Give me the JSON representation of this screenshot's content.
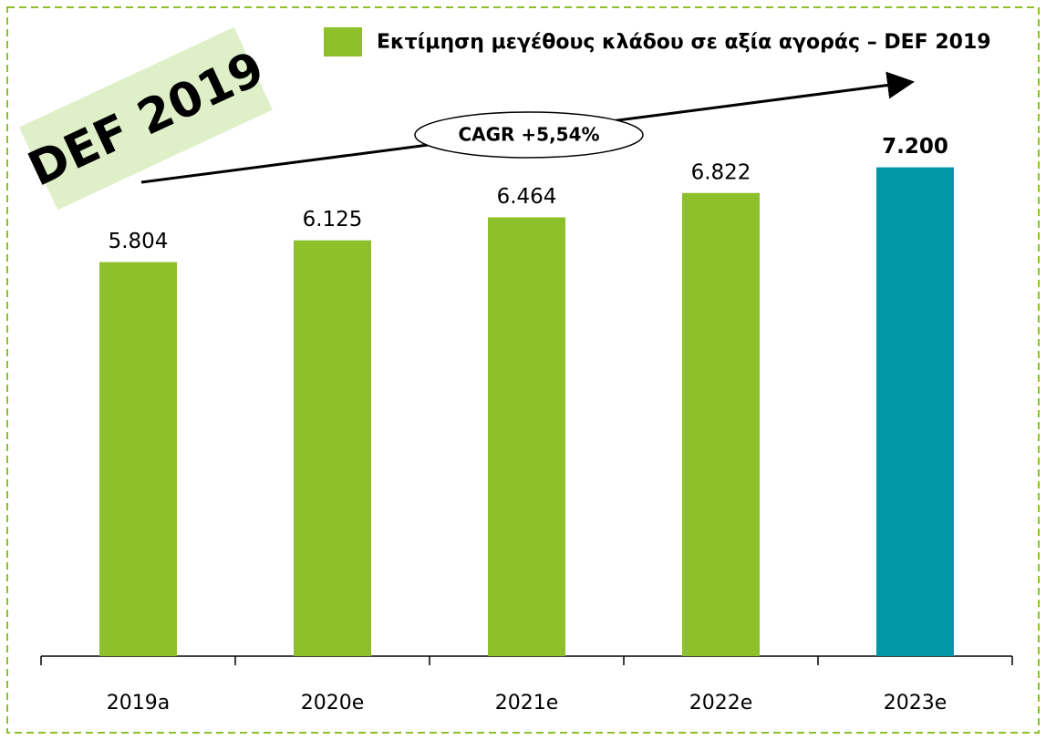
{
  "chart_data": {
    "type": "bar",
    "title": "DEF 2019",
    "legend": "Εκτίμηση μεγέθους κλάδου σε αξία αγοράς – DEF 2019",
    "annotation": "CAGR +5,54%",
    "categories": [
      "2019a",
      "2020e",
      "2021e",
      "2022e",
      "2023e"
    ],
    "values": [
      5804,
      6125,
      6464,
      6822,
      7200
    ],
    "value_labels": [
      "5.804",
      "6.125",
      "6.464",
      "6.822",
      "7.200"
    ],
    "colors": [
      "#8dc02a",
      "#8dc02a",
      "#8dc02a",
      "#8dc02a",
      "#0097a7"
    ],
    "bold_labels": [
      false,
      false,
      false,
      false,
      true
    ],
    "ylim": [
      0,
      9000
    ]
  }
}
